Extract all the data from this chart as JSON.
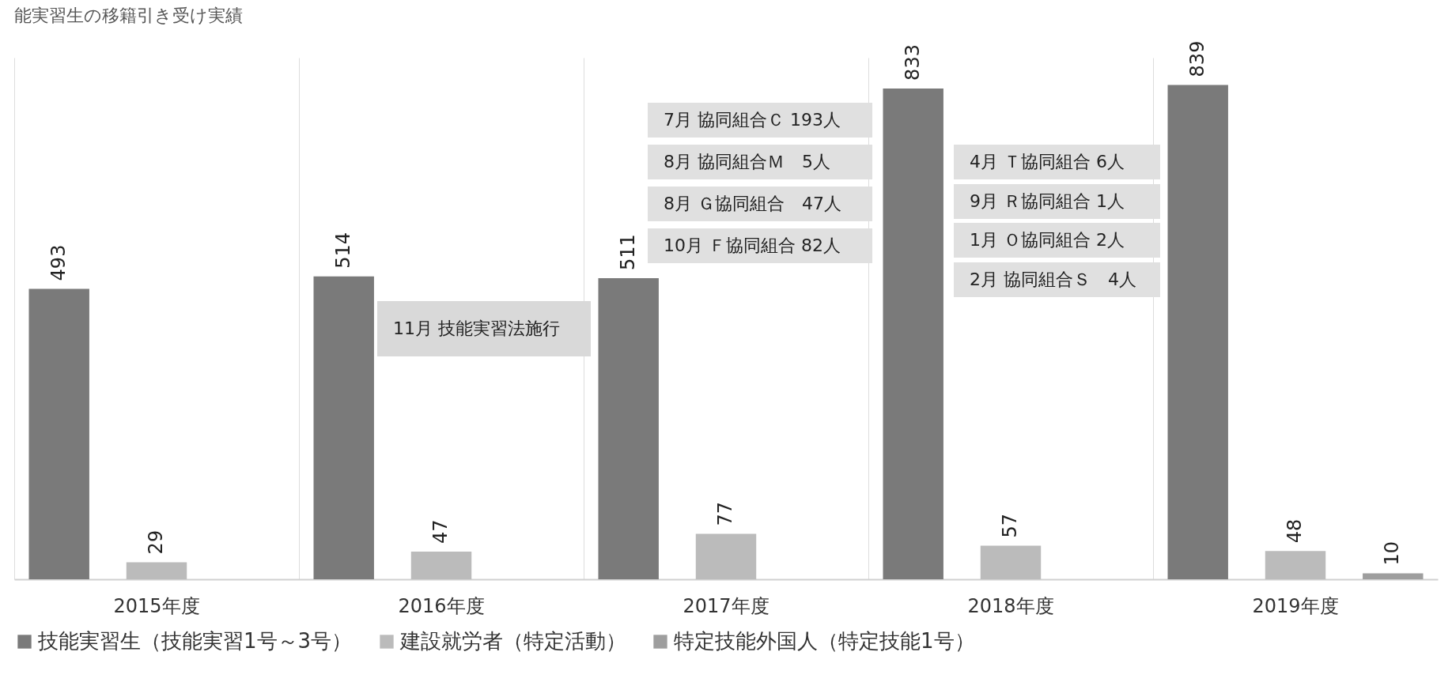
{
  "chart_data": {
    "type": "bar",
    "title": "能実習生の移籍引き受け実績",
    "categories": [
      "2015年度",
      "2016年度",
      "2017年度",
      "2018年度",
      "2019年度"
    ],
    "series": [
      {
        "name": "技能実習生（技能実習1号～3号）",
        "color": "#7a7a7a",
        "values": [
          493,
          514,
          511,
          833,
          839
        ]
      },
      {
        "name": "建設就労者（特定活動）",
        "color": "#bbbbbb",
        "values": [
          29,
          47,
          77,
          57,
          48
        ]
      },
      {
        "name": "特定技能外国人（特定技能1号）",
        "color": "#9e9e9e",
        "values": [
          null,
          null,
          null,
          null,
          10
        ]
      }
    ],
    "data_labels": true,
    "grid": "x",
    "legend": "bottom",
    "annotations": [
      "11月 技能実習法施行",
      "7月 協同組合Ｃ 193人",
      "8月 協同組合Ｍ　5人",
      "8月 Ｇ協同組合　47人",
      "10月 Ｆ協同組合 82人",
      "4月 Ｔ協同組合 6人",
      "9月 Ｒ協同組合 1人",
      "1月 Ｏ協同組合 2人",
      "2月 協同組合Ｓ　4人"
    ]
  }
}
